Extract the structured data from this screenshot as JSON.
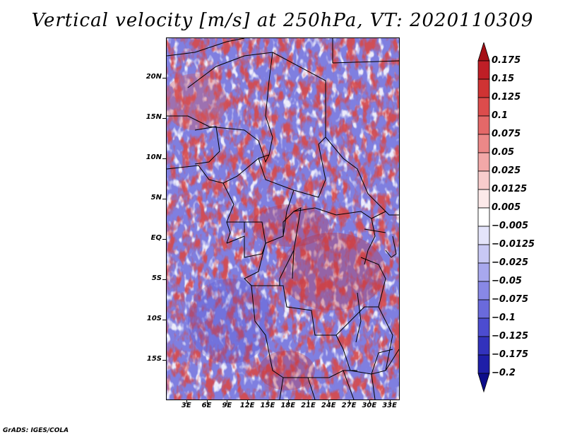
{
  "title": "Vertical velocity [m/s] at 250hPa, VT: 2020110309",
  "footer": "GrADS: IGES/COLA",
  "map": {
    "lat_ticks": [
      "20N",
      "15N",
      "10N",
      "5N",
      "EQ",
      "5S",
      "10S",
      "15S"
    ],
    "lat_values": [
      20,
      15,
      10,
      5,
      0,
      -5,
      -10,
      -15
    ],
    "lon_ticks": [
      "3E",
      "6E",
      "9E",
      "12E",
      "15E",
      "18E",
      "21E",
      "24E",
      "27E",
      "30E",
      "33E"
    ],
    "lon_values": [
      3,
      6,
      9,
      12,
      15,
      18,
      21,
      24,
      27,
      30,
      33
    ],
    "lon_range": [
      0,
      34.5
    ],
    "lat_range": [
      -20,
      25
    ]
  },
  "colorbar": {
    "labels": [
      "0.175",
      "0.15",
      "0.125",
      "0.1",
      "0.075",
      "0.05",
      "0.025",
      "0.0125",
      "0.005",
      "−0.005",
      "−0.0125",
      "−0.025",
      "−0.05",
      "−0.075",
      "−0.1",
      "−0.125",
      "−0.175",
      "−0.2"
    ],
    "colors": [
      "#a50f15",
      "#bf1e26",
      "#cf3333",
      "#dc4c4c",
      "#e46868",
      "#ec8888",
      "#f2a8a8",
      "#f8cccc",
      "#fce9e9",
      "#ffffff",
      "#e4e4fa",
      "#c8c8f4",
      "#a8a8ee",
      "#8888e6",
      "#6a6adc",
      "#4c4cd0",
      "#3232bc",
      "#1e1ea8",
      "#0c0c8a"
    ]
  }
}
